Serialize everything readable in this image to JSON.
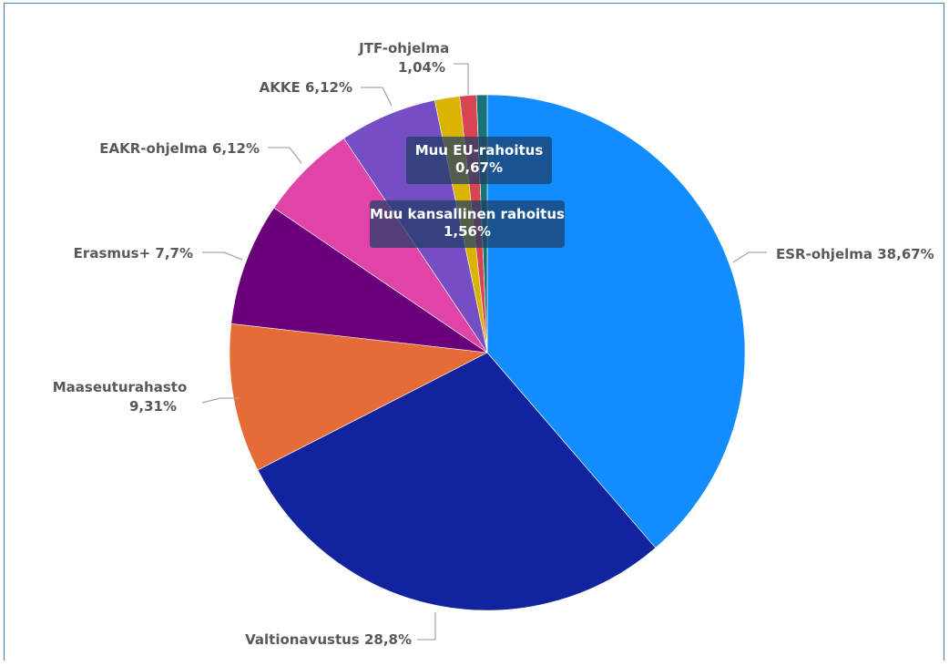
{
  "chart_data": {
    "type": "pie",
    "title": "",
    "start_angle_deg": 0,
    "direction": "clockwise",
    "slices": [
      {
        "name": "ESR-ohjelma",
        "value": 38.67,
        "label": "ESR-ohjelma 38,67%",
        "color": "#118dff"
      },
      {
        "name": "Valtionavustus",
        "value": 28.8,
        "label": "Valtionavustus 28,8%",
        "color": "#12239e"
      },
      {
        "name": "Maaseuturahasto",
        "value": 9.31,
        "label": "Maaseuturahasto 9,31%",
        "label_lines": [
          "Maaseuturahasto",
          "9,31%"
        ],
        "color": "#e66c37"
      },
      {
        "name": "Erasmus+",
        "value": 7.7,
        "label": "Erasmus+ 7,7%",
        "color": "#6b007b"
      },
      {
        "name": "EAKR-ohjelma",
        "value": 6.12,
        "label": "EAKR-ohjelma 6,12%",
        "color": "#e044a7"
      },
      {
        "name": "AKKE",
        "value": 6.12,
        "label": "AKKE 6,12%",
        "color": "#744ec2"
      },
      {
        "name": "Muu kansallinen rahoitus",
        "value": 1.56,
        "label": "Muu kansallinen rahoitus 1,56%",
        "label_lines": [
          "Muu kansallinen rahoitus",
          "1,56%"
        ],
        "color": "#d9b300",
        "label_inside": true
      },
      {
        "name": "JTF-ohjelma",
        "value": 1.04,
        "label": "JTF-ohjelma 1,04%",
        "label_lines": [
          "JTF-ohjelma",
          "1,04%"
        ],
        "color": "#d64550"
      },
      {
        "name": "Muu EU-rahoitus",
        "value": 0.67,
        "label": "Muu EU-rahoitus 0,67%",
        "label_lines": [
          "Muu EU-rahoitus",
          "0,67%"
        ],
        "color": "#197278",
        "label_inside": true
      }
    ]
  }
}
